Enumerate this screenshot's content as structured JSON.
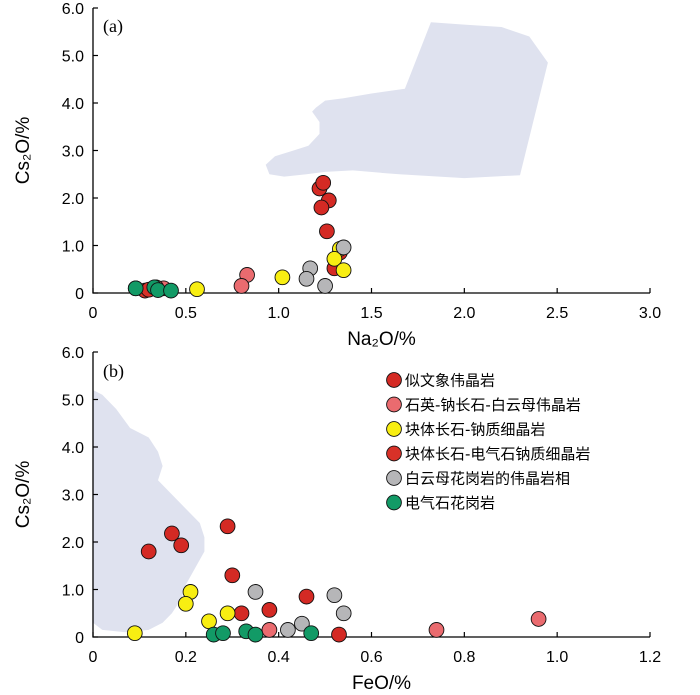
{
  "colors": {
    "series1": "#d42a24",
    "series2": "#ea6b6f",
    "series3": "#f8ee12",
    "series4": "#d83128",
    "series5": "#b6b6b8",
    "series6": "#129a66",
    "field": "#dfe2ef"
  },
  "legend": [
    {
      "label": "似文象伟晶岩",
      "color_key": "series1"
    },
    {
      "label": "石英-钠长石-白云母伟晶岩",
      "color_key": "series2"
    },
    {
      "label": "块体长石-钠质细晶岩",
      "color_key": "series3"
    },
    {
      "label": "块体长石-电气石钠质细晶岩",
      "color_key": "series4"
    },
    {
      "label": "白云母花岗岩的伟晶岩相",
      "color_key": "series5"
    },
    {
      "label": "电气石花岗岩",
      "color_key": "series6"
    }
  ],
  "chart_data": [
    {
      "id": "a",
      "type": "scatter",
      "panel_label": "(a)",
      "xlabel": "Na₂O/%",
      "ylabel": "Cs₂O/%",
      "xlim": [
        0,
        3.0
      ],
      "ylim": [
        0,
        6.0
      ],
      "xticks": [
        0,
        0.5,
        1.0,
        1.5,
        2.0,
        2.5,
        3.0
      ],
      "xtick_labels": [
        "0",
        "0.5",
        "1.0",
        "1.5",
        "2.0",
        "2.5",
        "3.0"
      ],
      "yticks": [
        0,
        1.0,
        2.0,
        3.0,
        4.0,
        5.0,
        6.0
      ],
      "ytick_labels": [
        "0",
        "1.0",
        "2.0",
        "3.0",
        "4.0",
        "5.0",
        "6.0"
      ],
      "field_polygon": [
        [
          1.65,
          2.5
        ],
        [
          2.0,
          2.42
        ],
        [
          2.3,
          2.48
        ],
        [
          2.45,
          4.85
        ],
        [
          2.35,
          5.4
        ],
        [
          2.2,
          5.6
        ],
        [
          2.0,
          5.65
        ],
        [
          1.82,
          5.7
        ],
        [
          1.68,
          4.3
        ],
        [
          1.5,
          4.2
        ],
        [
          1.35,
          4.1
        ],
        [
          1.25,
          4.05
        ],
        [
          1.2,
          3.9
        ],
        [
          1.18,
          3.82
        ],
        [
          1.22,
          3.6
        ],
        [
          1.22,
          3.35
        ],
        [
          1.16,
          3.1
        ],
        [
          1.08,
          3.0
        ],
        [
          0.98,
          2.88
        ],
        [
          0.93,
          2.7
        ],
        [
          0.95,
          2.5
        ],
        [
          1.03,
          2.45
        ],
        [
          1.15,
          2.5
        ],
        [
          1.25,
          2.55
        ],
        [
          1.4,
          2.58
        ],
        [
          1.55,
          2.53
        ]
      ],
      "series": [
        {
          "name": "似文象伟晶岩",
          "color_key": "series1",
          "points": [
            [
              1.22,
              2.2
            ],
            [
              1.24,
              2.32
            ],
            [
              1.27,
              1.95
            ],
            [
              1.23,
              1.8
            ],
            [
              1.26,
              1.3
            ],
            [
              1.3,
              0.52
            ],
            [
              1.33,
              0.85
            ]
          ]
        },
        {
          "name": "石英-钠长石-白云母伟晶岩",
          "color_key": "series2",
          "points": [
            [
              0.83,
              0.38
            ],
            [
              0.8,
              0.15
            ],
            [
              0.38,
              0.1
            ],
            [
              0.34,
              0.12
            ]
          ]
        },
        {
          "name": "块体长石-钠质细晶岩",
          "color_key": "series3",
          "points": [
            [
              1.02,
              0.33
            ],
            [
              0.56,
              0.08
            ],
            [
              1.33,
              0.93
            ],
            [
              1.3,
              0.72
            ],
            [
              1.35,
              0.48
            ]
          ]
        },
        {
          "name": "块体长石-电气石钠质细晶岩",
          "color_key": "series4",
          "points": [
            [
              0.23,
              0.1
            ],
            [
              0.28,
              0.05
            ],
            [
              0.3,
              0.07
            ]
          ]
        },
        {
          "name": "白云母花岗岩的伟晶岩相",
          "color_key": "series5",
          "points": [
            [
              1.17,
              0.52
            ],
            [
              1.15,
              0.3
            ],
            [
              1.25,
              0.15
            ],
            [
              1.35,
              0.96
            ]
          ]
        },
        {
          "name": "电气石花岗岩",
          "color_key": "series6",
          "points": [
            [
              0.23,
              0.1
            ],
            [
              0.33,
              0.12
            ],
            [
              0.35,
              0.06
            ],
            [
              0.42,
              0.05
            ]
          ]
        }
      ]
    },
    {
      "id": "b",
      "type": "scatter",
      "panel_label": "(b)",
      "xlabel": "FeO/%",
      "ylabel": "Cs₂O/%",
      "xlim": [
        0,
        1.2
      ],
      "ylim": [
        0,
        6.0
      ],
      "xticks": [
        0,
        0.2,
        0.4,
        0.6,
        0.8,
        1.0,
        1.2
      ],
      "xtick_labels": [
        "0",
        "0.2",
        "0.4",
        "0.6",
        "0.8",
        "1.0",
        "1.2"
      ],
      "yticks": [
        0,
        1.0,
        2.0,
        3.0,
        4.0,
        5.0,
        6.0
      ],
      "ytick_labels": [
        "0",
        "1.0",
        "2.0",
        "3.0",
        "4.0",
        "5.0",
        "6.0"
      ],
      "field_polygon": [
        [
          0,
          5.2
        ],
        [
          0.02,
          5.1
        ],
        [
          0.05,
          4.8
        ],
        [
          0.08,
          4.4
        ],
        [
          0.12,
          4.2
        ],
        [
          0.14,
          3.9
        ],
        [
          0.15,
          3.6
        ],
        [
          0.14,
          3.3
        ],
        [
          0.17,
          3.0
        ],
        [
          0.2,
          2.7
        ],
        [
          0.23,
          2.4
        ],
        [
          0.24,
          2.1
        ],
        [
          0.24,
          1.8
        ],
        [
          0.22,
          1.45
        ],
        [
          0.2,
          1.1
        ],
        [
          0.19,
          0.8
        ],
        [
          0.17,
          0.5
        ],
        [
          0.15,
          0.3
        ],
        [
          0.12,
          0.15
        ],
        [
          0.07,
          0.1
        ],
        [
          0.02,
          0.15
        ],
        [
          0,
          0.3
        ]
      ],
      "series": [
        {
          "name": "似文象伟晶岩",
          "color_key": "series1",
          "points": [
            [
              0.12,
              1.8
            ],
            [
              0.17,
              2.18
            ],
            [
              0.19,
              1.93
            ],
            [
              0.29,
              2.33
            ],
            [
              0.3,
              1.3
            ],
            [
              0.38,
              0.57
            ],
            [
              0.46,
              0.85
            ],
            [
              0.32,
              0.5
            ],
            [
              0.53,
              0.05
            ]
          ]
        },
        {
          "name": "石英-钠长石-白云母伟晶岩",
          "color_key": "series2",
          "points": [
            [
              0.96,
              0.38
            ],
            [
              0.74,
              0.15
            ],
            [
              0.38,
              0.15
            ]
          ]
        },
        {
          "name": "块体长石-钠质细晶岩",
          "color_key": "series3",
          "points": [
            [
              0.09,
              0.08
            ],
            [
              0.21,
              0.95
            ],
            [
              0.2,
              0.7
            ],
            [
              0.29,
              0.5
            ],
            [
              0.25,
              0.33
            ]
          ]
        },
        {
          "name": "块体长石-电气石钠质细晶岩",
          "color_key": "series4",
          "points": []
        },
        {
          "name": "白云母花岗岩的伟晶岩相",
          "color_key": "series5",
          "points": [
            [
              0.35,
              0.95
            ],
            [
              0.52,
              0.88
            ],
            [
              0.54,
              0.5
            ],
            [
              0.45,
              0.28
            ],
            [
              0.42,
              0.15
            ]
          ]
        },
        {
          "name": "电气石花岗岩",
          "color_key": "series6",
          "points": [
            [
              0.26,
              0.05
            ],
            [
              0.28,
              0.08
            ],
            [
              0.33,
              0.12
            ],
            [
              0.35,
              0.05
            ],
            [
              0.47,
              0.08
            ]
          ]
        }
      ]
    }
  ]
}
